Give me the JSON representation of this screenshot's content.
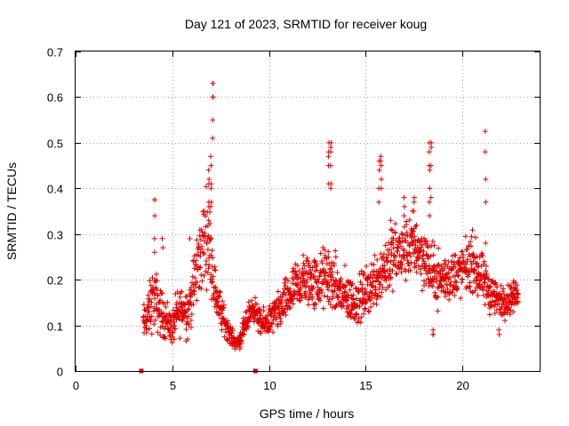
{
  "chart_data": {
    "type": "scatter",
    "title": "Day 121 of 2023, SRMTID for receiver koug",
    "xlabel": "GPS time / hours",
    "ylabel": "SRMTID / TECUs",
    "xlim": [
      0,
      24
    ],
    "ylim": [
      0,
      0.7
    ],
    "xticks": [
      0,
      5,
      10,
      15,
      20
    ],
    "xtick_labels": [
      "0",
      "5",
      "10",
      "15",
      "20"
    ],
    "yticks": [
      0,
      0.1,
      0.2,
      0.3,
      0.4,
      0.5,
      0.6,
      0.7
    ],
    "ytick_labels": [
      "0",
      "0.1",
      "0.2",
      "0.3",
      "0.4",
      "0.5",
      "0.6",
      "0.7"
    ],
    "grid": true,
    "marker": "plus",
    "color": "#e00000",
    "baseline_markers_x": [
      3.4,
      9.3
    ],
    "envelope_x": [
      3.5,
      3.8,
      4.0,
      4.2,
      4.5,
      4.8,
      5.0,
      5.2,
      5.5,
      5.8,
      6.0,
      6.3,
      6.6,
      6.8,
      7.0,
      7.2,
      7.5,
      7.8,
      8.0,
      8.3,
      8.5,
      8.8,
      9.0,
      9.2,
      9.4,
      9.6,
      10.0,
      10.5,
      11.0,
      11.5,
      12.0,
      12.5,
      13.0,
      13.5,
      14.0,
      14.5,
      15.0,
      15.5,
      16.0,
      16.5,
      17.0,
      17.5,
      18.0,
      18.5,
      19.0,
      19.5,
      20.0,
      20.5,
      21.0,
      21.5,
      22.0,
      22.5,
      22.9
    ],
    "envelope_mean": [
      0.1,
      0.13,
      0.16,
      0.15,
      0.12,
      0.11,
      0.09,
      0.12,
      0.14,
      0.13,
      0.16,
      0.23,
      0.28,
      0.3,
      0.26,
      0.18,
      0.13,
      0.1,
      0.08,
      0.06,
      0.07,
      0.1,
      0.13,
      0.14,
      0.12,
      0.1,
      0.11,
      0.13,
      0.16,
      0.19,
      0.2,
      0.19,
      0.21,
      0.18,
      0.16,
      0.15,
      0.17,
      0.2,
      0.23,
      0.25,
      0.26,
      0.28,
      0.25,
      0.21,
      0.2,
      0.21,
      0.22,
      0.24,
      0.2,
      0.17,
      0.15,
      0.16,
      0.17
    ],
    "envelope_spread": [
      0.06,
      0.08,
      0.1,
      0.09,
      0.07,
      0.06,
      0.05,
      0.07,
      0.08,
      0.08,
      0.09,
      0.12,
      0.14,
      0.14,
      0.12,
      0.08,
      0.06,
      0.04,
      0.03,
      0.02,
      0.03,
      0.04,
      0.04,
      0.04,
      0.04,
      0.04,
      0.05,
      0.06,
      0.07,
      0.08,
      0.09,
      0.09,
      0.1,
      0.09,
      0.08,
      0.07,
      0.08,
      0.09,
      0.1,
      0.1,
      0.1,
      0.1,
      0.1,
      0.09,
      0.08,
      0.08,
      0.08,
      0.09,
      0.08,
      0.07,
      0.05,
      0.05,
      0.04
    ],
    "spikes": [
      {
        "x": 4.1,
        "values": [
          0.26,
          0.29,
          0.34,
          0.375,
          0.375
        ]
      },
      {
        "x": 4.5,
        "values": [
          0.27,
          0.29
        ]
      },
      {
        "x": 5.9,
        "values": [
          0.29
        ]
      },
      {
        "x": 6.9,
        "values": [
          0.33,
          0.36,
          0.37,
          0.41,
          0.42,
          0.44
        ]
      },
      {
        "x": 7.0,
        "values": [
          0.36,
          0.37,
          0.4,
          0.41,
          0.45,
          0.47
        ]
      },
      {
        "x": 7.1,
        "values": [
          0.51,
          0.55,
          0.6,
          0.6,
          0.63,
          0.63
        ]
      },
      {
        "x": 13.1,
        "values": [
          0.41,
          0.45,
          0.47,
          0.48,
          0.5
        ]
      },
      {
        "x": 13.2,
        "values": [
          0.4,
          0.41,
          0.45,
          0.48,
          0.49,
          0.5
        ]
      },
      {
        "x": 15.7,
        "values": [
          0.37,
          0.4,
          0.44,
          0.46
        ]
      },
      {
        "x": 15.8,
        "values": [
          0.4,
          0.42,
          0.45,
          0.46,
          0.47
        ]
      },
      {
        "x": 16.3,
        "values": [
          0.31,
          0.33
        ]
      },
      {
        "x": 17.0,
        "values": [
          0.34,
          0.36,
          0.38
        ]
      },
      {
        "x": 17.5,
        "values": [
          0.35,
          0.37,
          0.38
        ]
      },
      {
        "x": 18.3,
        "values": [
          0.34,
          0.37,
          0.4,
          0.44,
          0.45,
          0.48,
          0.5
        ]
      },
      {
        "x": 18.4,
        "values": [
          0.38,
          0.45,
          0.49,
          0.5
        ]
      },
      {
        "x": 18.5,
        "values": [
          0.08,
          0.08,
          0.09
        ]
      },
      {
        "x": 21.2,
        "values": [
          0.28,
          0.37,
          0.42,
          0.48,
          0.525
        ]
      },
      {
        "x": 21.9,
        "values": [
          0.08,
          0.09
        ]
      }
    ]
  }
}
